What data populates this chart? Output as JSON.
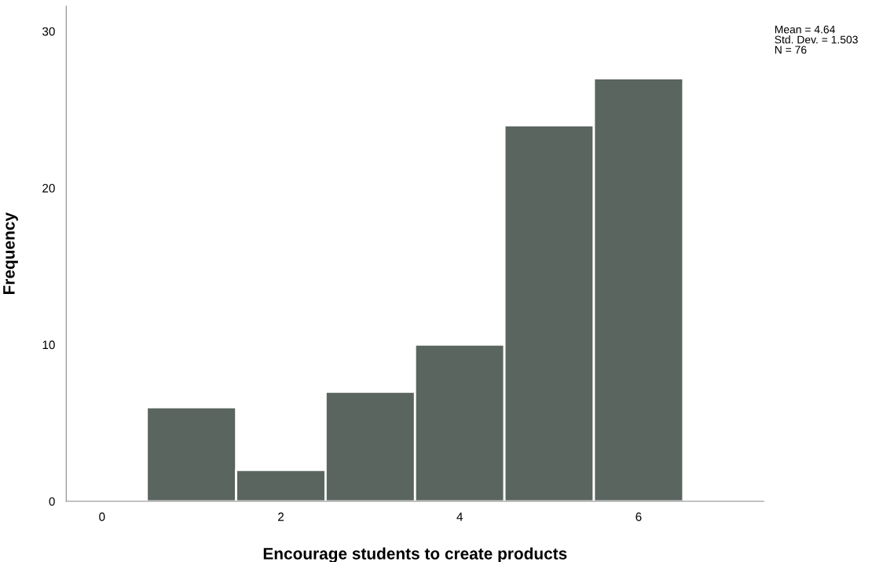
{
  "chart_data": {
    "type": "histogram",
    "xlabel": "Encourage students to create products",
    "ylabel": "Frequency",
    "bins": [
      0.5,
      1.5,
      2.5,
      3.5,
      4.5,
      5.5,
      6.5
    ],
    "values": [
      6,
      2,
      7,
      10,
      24,
      27
    ],
    "color": "#5b6560",
    "xlim": [
      -0.4,
      7.4
    ],
    "xticks": [
      0,
      2,
      4,
      6
    ],
    "ylim": [
      0,
      31.6
    ],
    "yticks": [
      0,
      10,
      20,
      30
    ],
    "grid": false,
    "legend": false,
    "annotations": [
      "Mean = 4.64",
      "Std. Dev. = 1.503",
      "N = 76"
    ]
  }
}
